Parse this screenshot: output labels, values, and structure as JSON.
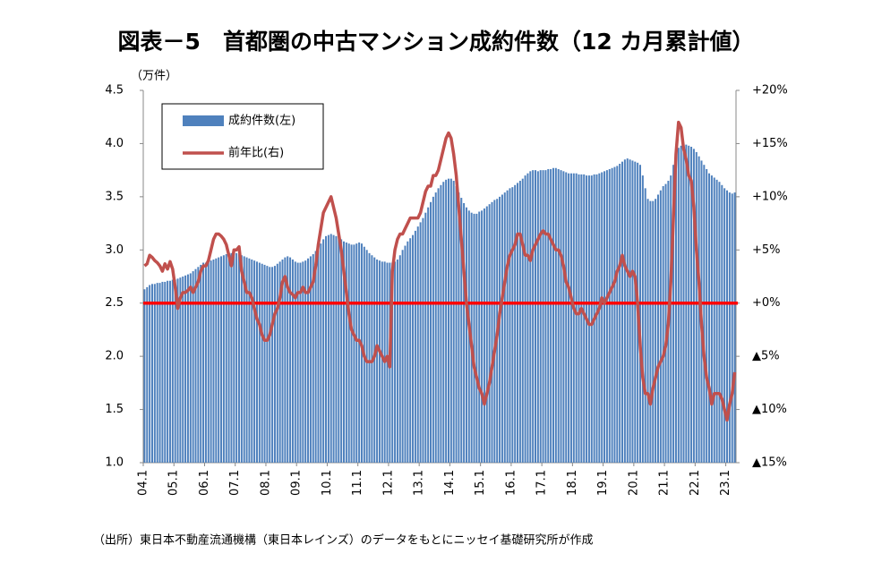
{
  "chart_data": {
    "type": "bar_line",
    "title": "図表－5　首都圏の中古マンション成約件数（12 カ月累計値）",
    "y_label": "（万件）",
    "source": "（出所）東日本不動産流通機構（東日本レインズ）のデータをもとにニッセイ基礎研究所が作成",
    "categories": [
      "04.1",
      null,
      null,
      null,
      null,
      null,
      null,
      null,
      null,
      null,
      null,
      null,
      "05.1",
      null,
      null,
      null,
      null,
      null,
      null,
      null,
      null,
      null,
      null,
      null,
      "06.1",
      null,
      null,
      null,
      null,
      null,
      null,
      null,
      null,
      null,
      null,
      null,
      "07.1",
      null,
      null,
      null,
      null,
      null,
      null,
      null,
      null,
      null,
      null,
      null,
      "08.1",
      null,
      null,
      null,
      null,
      null,
      null,
      null,
      null,
      null,
      null,
      null,
      "09.1",
      null,
      null,
      null,
      null,
      null,
      null,
      null,
      null,
      null,
      null,
      null,
      "10.1",
      null,
      null,
      null,
      null,
      null,
      null,
      null,
      null,
      null,
      null,
      null,
      "11.1",
      null,
      null,
      null,
      null,
      null,
      null,
      null,
      null,
      null,
      null,
      null,
      "12.1",
      null,
      null,
      null,
      null,
      null,
      null,
      null,
      null,
      null,
      null,
      null,
      "13.1",
      null,
      null,
      null,
      null,
      null,
      null,
      null,
      null,
      null,
      null,
      null,
      "14.1",
      null,
      null,
      null,
      null,
      null,
      null,
      null,
      null,
      null,
      null,
      null,
      "15.1",
      null,
      null,
      null,
      null,
      null,
      null,
      null,
      null,
      null,
      null,
      null,
      "16.1",
      null,
      null,
      null,
      null,
      null,
      null,
      null,
      null,
      null,
      null,
      null,
      "17.1",
      null,
      null,
      null,
      null,
      null,
      null,
      null,
      null,
      null,
      null,
      null,
      "18.1",
      null,
      null,
      null,
      null,
      null,
      null,
      null,
      null,
      null,
      null,
      null,
      "19.1",
      null,
      null,
      null,
      null,
      null,
      null,
      null,
      null,
      null,
      null,
      null,
      "20.1",
      null,
      null,
      null,
      null,
      null,
      null,
      null,
      null,
      null,
      null,
      null,
      "21.1",
      null,
      null,
      null,
      null,
      null,
      null,
      null,
      null,
      null,
      null,
      null,
      "22.1",
      null,
      null,
      null,
      null,
      null,
      null,
      null,
      null,
      null,
      null,
      null,
      "23.1",
      null,
      null,
      null
    ],
    "series": [
      {
        "name": "成約件数(左)",
        "kind": "bar",
        "axis": "y",
        "color": "#4f81bd",
        "values": [
          2.63,
          2.65,
          2.67,
          2.68,
          2.68,
          2.69,
          2.69,
          2.7,
          2.7,
          2.71,
          2.71,
          2.72,
          2.72,
          2.73,
          2.74,
          2.75,
          2.76,
          2.77,
          2.78,
          2.8,
          2.82,
          2.84,
          2.86,
          2.88,
          2.88,
          2.89,
          2.9,
          2.91,
          2.92,
          2.93,
          2.94,
          2.95,
          2.96,
          2.97,
          2.97,
          2.98,
          2.97,
          2.96,
          2.95,
          2.94,
          2.93,
          2.92,
          2.91,
          2.9,
          2.89,
          2.88,
          2.87,
          2.86,
          2.85,
          2.84,
          2.84,
          2.85,
          2.87,
          2.89,
          2.91,
          2.93,
          2.94,
          2.93,
          2.91,
          2.89,
          2.88,
          2.88,
          2.89,
          2.9,
          2.92,
          2.94,
          2.96,
          2.99,
          3.02,
          3.06,
          3.1,
          3.13,
          3.14,
          3.15,
          3.14,
          3.13,
          3.12,
          3.1,
          3.08,
          3.07,
          3.06,
          3.05,
          3.05,
          3.06,
          3.07,
          3.06,
          3.03,
          3.0,
          2.97,
          2.95,
          2.93,
          2.91,
          2.9,
          2.89,
          2.89,
          2.88,
          2.88,
          2.88,
          2.89,
          2.91,
          2.95,
          3.0,
          3.04,
          3.08,
          3.11,
          3.14,
          3.18,
          3.22,
          3.26,
          3.3,
          3.35,
          3.4,
          3.45,
          3.5,
          3.54,
          3.58,
          3.61,
          3.64,
          3.66,
          3.67,
          3.67,
          3.65,
          3.6,
          3.54,
          3.49,
          3.44,
          3.4,
          3.37,
          3.35,
          3.34,
          3.34,
          3.36,
          3.37,
          3.39,
          3.41,
          3.43,
          3.45,
          3.47,
          3.48,
          3.5,
          3.52,
          3.54,
          3.56,
          3.58,
          3.59,
          3.61,
          3.63,
          3.65,
          3.67,
          3.7,
          3.72,
          3.74,
          3.75,
          3.75,
          3.74,
          3.75,
          3.75,
          3.75,
          3.76,
          3.76,
          3.77,
          3.77,
          3.76,
          3.75,
          3.74,
          3.73,
          3.72,
          3.72,
          3.72,
          3.72,
          3.71,
          3.71,
          3.71,
          3.7,
          3.7,
          3.7,
          3.71,
          3.71,
          3.72,
          3.73,
          3.74,
          3.75,
          3.76,
          3.77,
          3.78,
          3.79,
          3.81,
          3.83,
          3.85,
          3.86,
          3.85,
          3.84,
          3.83,
          3.82,
          3.8,
          3.7,
          3.58,
          3.48,
          3.46,
          3.46,
          3.48,
          3.52,
          3.56,
          3.6,
          3.62,
          3.65,
          3.7,
          3.8,
          3.9,
          3.96,
          3.98,
          3.99,
          3.99,
          3.98,
          3.97,
          3.95,
          3.92,
          3.88,
          3.84,
          3.8,
          3.76,
          3.72,
          3.7,
          3.68,
          3.66,
          3.64,
          3.61,
          3.58,
          3.56,
          3.54,
          3.53,
          3.54
        ]
      },
      {
        "name": "前年比(右)",
        "kind": "line",
        "axis": "y2",
        "color": "#c0504d",
        "values": [
          3.5,
          3.7,
          4.5,
          4.3,
          4.0,
          3.8,
          3.5,
          3.0,
          3.7,
          3.2,
          3.9,
          3.2,
          1.5,
          -0.5,
          0.5,
          1.0,
          1.0,
          1.2,
          1.5,
          1.0,
          1.5,
          2.0,
          3.0,
          3.5,
          3.5,
          4.0,
          5.0,
          6.0,
          6.5,
          6.5,
          6.3,
          6.0,
          5.5,
          4.5,
          3.5,
          5.0,
          5.0,
          5.3,
          3.0,
          2.0,
          1.0,
          1.0,
          0.5,
          -0.5,
          -1.5,
          -2.0,
          -3.0,
          -3.5,
          -3.5,
          -3.0,
          -2.0,
          -1.0,
          -0.5,
          0.5,
          2.0,
          2.5,
          1.5,
          1.0,
          0.8,
          0.5,
          1.0,
          1.0,
          1.5,
          1.0,
          1.0,
          1.5,
          2.0,
          3.5,
          5.5,
          7.0,
          8.5,
          9.0,
          9.5,
          10.0,
          9.0,
          8.0,
          6.5,
          5.0,
          3.0,
          1.0,
          -1.0,
          -2.5,
          -3.0,
          -3.5,
          -3.5,
          -4.0,
          -5.0,
          -5.5,
          -5.5,
          -5.5,
          -5.0,
          -4.0,
          -4.5,
          -5.0,
          -5.5,
          -5.0,
          -6.0,
          3.0,
          5.0,
          6.0,
          6.5,
          6.5,
          7.0,
          7.5,
          8.0,
          8.0,
          8.0,
          8.0,
          8.5,
          9.5,
          10.5,
          11.0,
          11.0,
          12.0,
          12.0,
          12.5,
          13.5,
          14.5,
          15.5,
          16.0,
          15.5,
          14.0,
          12.0,
          9.0,
          6.0,
          3.0,
          0.0,
          -2.0,
          -4.0,
          -6.0,
          -7.0,
          -8.0,
          -8.5,
          -9.5,
          -8.5,
          -7.5,
          -6.0,
          -4.5,
          -3.0,
          -1.0,
          0.5,
          2.0,
          3.5,
          4.5,
          5.0,
          5.5,
          6.5,
          6.5,
          5.5,
          4.5,
          4.5,
          4.0,
          5.0,
          5.5,
          6.0,
          6.5,
          6.8,
          6.5,
          6.5,
          6.0,
          5.5,
          5.0,
          5.0,
          4.5,
          3.5,
          2.0,
          1.5,
          0.5,
          -0.5,
          -1.0,
          -1.0,
          -0.5,
          -1.0,
          -1.5,
          -2.0,
          -2.0,
          -1.5,
          -1.0,
          -0.5,
          0.5,
          0.0,
          0.5,
          1.0,
          1.5,
          2.0,
          3.0,
          3.5,
          4.5,
          3.5,
          3.0,
          2.5,
          3.0,
          2.5,
          0.0,
          -4.0,
          -7.0,
          -8.5,
          -8.5,
          -9.5,
          -8.0,
          -7.0,
          -6.0,
          -5.5,
          -5.0,
          -4.0,
          -2.0,
          2.0,
          8.0,
          14.0,
          17.0,
          16.5,
          14.5,
          13.5,
          12.0,
          11.5,
          9.0,
          5.0,
          2.0,
          -2.0,
          -5.0,
          -7.0,
          -8.0,
          -9.5,
          -8.5,
          -8.5,
          -8.5,
          -9.0,
          -10.0,
          -11.0,
          -9.5,
          -8.5,
          -6.5
        ]
      }
    ],
    "ylim": [
      1.0,
      4.5
    ],
    "yticks": [
      {
        "value": 1.0,
        "label": "1.0"
      },
      1.5,
      {
        "value": 2.0,
        "label": "2.0"
      },
      2.5,
      {
        "value": 3.0,
        "label": "3.0"
      },
      3.5,
      {
        "value": 4.0,
        "label": "4.0"
      },
      4.5
    ],
    "y2lim": [
      -15,
      20
    ],
    "y2ticks": [
      {
        "value": -15,
        "label": "▲15%"
      },
      {
        "value": -10,
        "label": "▲10%"
      },
      {
        "value": -5,
        "label": "▲5%"
      },
      {
        "value": 0,
        "label": "+0%"
      },
      {
        "value": 5,
        "label": "+5%"
      },
      {
        "value": 10,
        "label": "+10%"
      },
      {
        "value": 15,
        "label": "+15%"
      },
      {
        "value": 20,
        "label": "+20%"
      }
    ],
    "reference_line": {
      "axis": "y2",
      "value": 0,
      "color": "#ff0000"
    },
    "legend": "top-left"
  }
}
